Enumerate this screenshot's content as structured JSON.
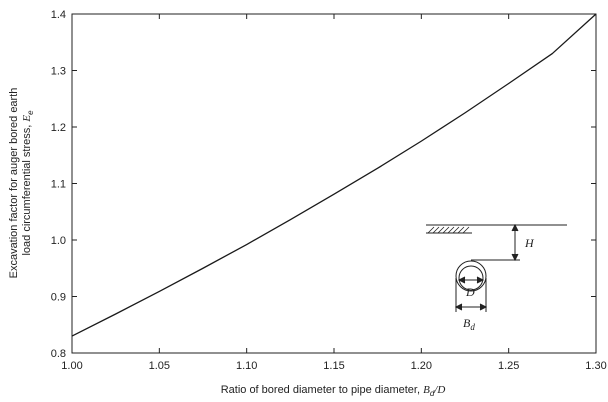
{
  "chart_data": {
    "type": "line",
    "xlabel": {
      "prefix": "Ratio of bored diameter to pipe diameter, ",
      "var": "B",
      "sub": "d",
      "suffix": "/D"
    },
    "ylabel": {
      "line1": "Excavation factor for auger bored earth",
      "line2_prefix": "load circumferential stress, ",
      "line2_var": "E",
      "line2_sub": "e"
    },
    "xlim": [
      1.0,
      1.3
    ],
    "ylim": [
      0.8,
      1.4
    ],
    "xticks": [
      "1.00",
      "1.05",
      "1.10",
      "1.15",
      "1.20",
      "1.25",
      "1.30"
    ],
    "yticks": [
      "0.8",
      "0.9",
      "1.0",
      "1.1",
      "1.2",
      "1.3",
      "1.4"
    ],
    "grid": false,
    "series": [
      {
        "x": [
          1.0,
          1.025,
          1.05,
          1.075,
          1.1,
          1.125,
          1.15,
          1.175,
          1.2,
          1.225,
          1.25,
          1.275,
          1.3
        ],
        "y": [
          0.83,
          0.869,
          0.909,
          0.95,
          0.992,
          1.036,
          1.081,
          1.127,
          1.175,
          1.225,
          1.277,
          1.33,
          1.4
        ],
        "color": "#1a1a1a"
      }
    ],
    "inset": {
      "height_label": "H",
      "pipe_label": "D",
      "bore_label_var": "B",
      "bore_label_sub": "d"
    }
  }
}
